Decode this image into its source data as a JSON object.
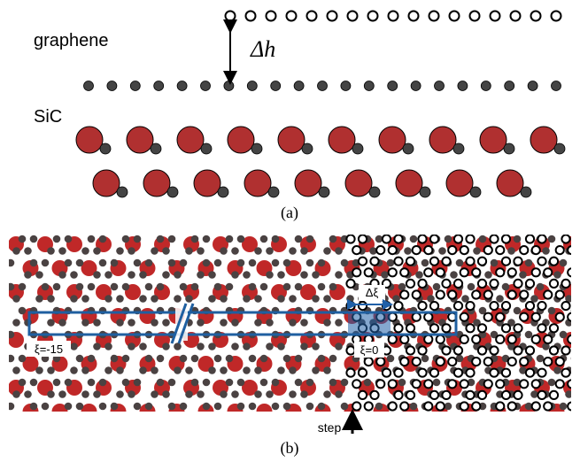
{
  "panel_a": {
    "graphene_label": "graphene",
    "height_label": "Δh",
    "substrate_label": "SiC",
    "caption": "(a)"
  },
  "panel_b": {
    "shift_label": "Δξ",
    "left_index_label": "ξ=-15",
    "right_index_label": "ξ=0",
    "step_label": "step",
    "caption": "(b)"
  }
}
